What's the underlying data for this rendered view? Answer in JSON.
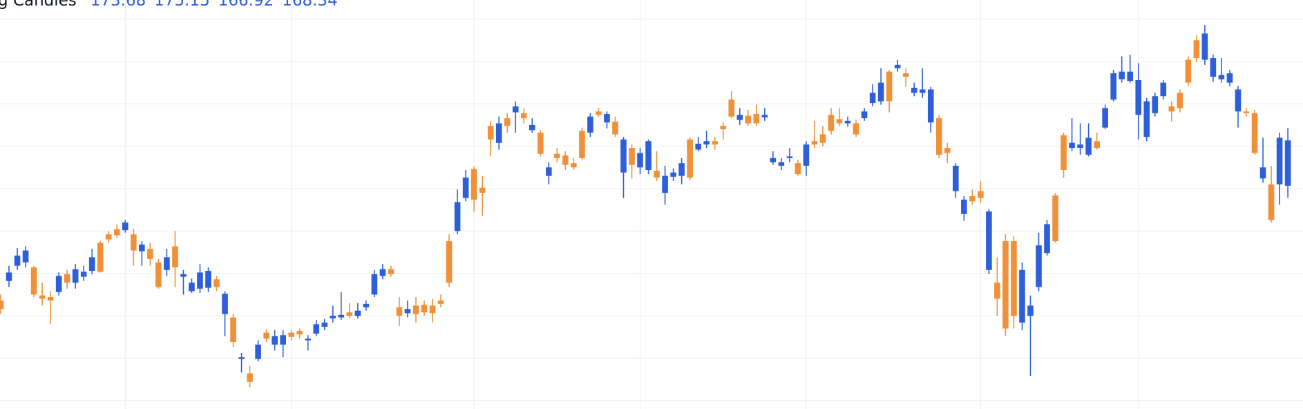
{
  "chart_data": {
    "type": "candlestick",
    "series": [
      {
        "name": "g Candles",
        "open": [
          153.8,
          158.1,
          160.1,
          160.7,
          155.5,
          155.0,
          154.8,
          157.7,
          156.9,
          158.5,
          158.2,
          159.9,
          158.2,
          162.0,
          162.5,
          164.0,
          160.7,
          161.4,
          159.7,
          156.4,
          159.9,
          158.7,
          157.9,
          156.9,
          158.1,
          158.3,
          156.4,
          155.6,
          149.9,
          148.1,
          145.2,
          149.6,
          150.3,
          150.6,
          150.7,
          150.5,
          150.8,
          150.3,
          152.0,
          152.2,
          153.0,
          153.1,
          153.0,
          153.6,
          154.4,
          157.9,
          158.5,
          157.9,
          153.0,
          153.8,
          153.2,
          153.4,
          153.3,
          154.4,
          156.9,
          166.4,
          169.3,
          166.7,
          167.5,
          173.8,
          175.7,
          175.4,
          177.7,
          176.3,
          175.5,
          172.1,
          170.5,
          171.6,
          170.8,
          170.5,
          171.6,
          176.5,
          176.7,
          176.8,
          174.4,
          173.8,
          170.8,
          172.2,
          173.6,
          169.3,
          169.5,
          169.9,
          171.0,
          169.3,
          173.3,
          173.6,
          173.2,
          175.0,
          176.5,
          176.7,
          175.7,
          175.7,
          176.7,
          171.6,
          171.1,
          171.8,
          169.7,
          173.2,
          173.2,
          173.4,
          174.8,
          175.7,
          176.0,
          174.4,
          177.1,
          179.3,
          180.5,
          178.3,
          182.6,
          181.2,
          179.9,
          179.7,
          179.7,
          172.0,
          172.2,
          170.7,
          166.7,
          166.5,
          166.9,
          165.3,
          155.0,
          151.5,
          153.0,
          158.4,
          154.2,
          161.3,
          163.8,
          161.8,
          170.2,
          173.4,
          173.2,
          174.0,
          172.8,
          177.5,
          181.6,
          181.8,
          181.8,
          180.8,
          178.3,
          178.9,
          180.5,
          177.1,
          177.5,
          180.5,
          183.4,
          186.3,
          183.4,
          181.4,
          181.6,
          179.7,
          176.9,
          172.2,
          170.5,
          164.3,
          174.0,
          173.68
        ],
        "high": [
          155.5,
          158.9,
          161.0,
          161.2,
          158.9,
          156.9,
          155.9,
          158.1,
          158.4,
          159.1,
          158.9,
          160.9,
          161.8,
          163.0,
          163.8,
          164.3,
          163.3,
          161.8,
          161.6,
          159.7,
          160.9,
          163.0,
          158.4,
          157.4,
          159.1,
          158.7,
          157.7,
          155.9,
          153.2,
          148.6,
          147.1,
          150.1,
          151.4,
          151.3,
          151.3,
          151.3,
          151.5,
          150.7,
          152.5,
          152.6,
          154.2,
          155.8,
          154.5,
          154.5,
          154.8,
          158.4,
          159.1,
          158.9,
          155.2,
          154.8,
          155.2,
          154.8,
          155.0,
          155.5,
          162.6,
          167.9,
          170.2,
          170.6,
          169.5,
          176.0,
          176.5,
          176.9,
          178.3,
          177.5,
          176.3,
          174.9,
          171.1,
          172.8,
          172.4,
          171.6,
          175.2,
          176.9,
          177.5,
          177.1,
          176.5,
          174.1,
          173.2,
          172.8,
          173.8,
          172.4,
          170.7,
          170.4,
          171.6,
          174.1,
          174.1,
          174.8,
          174.1,
          175.8,
          179.5,
          177.5,
          177.3,
          177.9,
          177.5,
          172.4,
          171.6,
          172.8,
          171.4,
          173.6,
          176.0,
          175.4,
          177.5,
          177.5,
          176.5,
          176.1,
          177.5,
          180.3,
          182.2,
          182.0,
          183.2,
          182.2,
          180.5,
          182.2,
          180.0,
          176.7,
          173.4,
          171.0,
          167.1,
          167.9,
          168.9,
          165.6,
          159.9,
          162.6,
          162.4,
          159.3,
          155.4,
          162.8,
          164.3,
          167.5,
          174.6,
          176.3,
          175.7,
          175.7,
          174.6,
          177.9,
          182.0,
          183.6,
          183.8,
          182.8,
          178.7,
          179.3,
          180.8,
          178.3,
          179.7,
          183.6,
          186.1,
          187.3,
          183.8,
          183.4,
          182.0,
          180.1,
          177.5,
          177.3,
          174.0,
          170.7,
          174.6,
          175.15
        ],
        "low": [
          153.2,
          156.4,
          158.4,
          158.7,
          155.2,
          154.2,
          152.0,
          155.4,
          156.2,
          156.2,
          157.1,
          157.9,
          158.1,
          161.6,
          162.2,
          162.8,
          158.9,
          158.9,
          158.9,
          156.2,
          157.7,
          156.4,
          155.5,
          155.7,
          155.7,
          155.8,
          155.9,
          150.6,
          149.3,
          146.3,
          144.6,
          147.6,
          149.9,
          148.9,
          148.1,
          150.1,
          150.3,
          148.9,
          150.6,
          151.3,
          152.2,
          152.5,
          152.7,
          152.7,
          153.6,
          155.2,
          157.3,
          157.6,
          151.8,
          152.8,
          152.2,
          153.0,
          152.2,
          154.0,
          156.4,
          162.6,
          166.5,
          165.3,
          164.8,
          171.8,
          172.6,
          174.6,
          174.6,
          175.7,
          174.6,
          171.8,
          168.5,
          171.1,
          170.2,
          170.2,
          171.4,
          174.1,
          176.5,
          175.1,
          174.1,
          166.9,
          169.2,
          169.7,
          169.7,
          168.9,
          166.1,
          168.9,
          168.5,
          169.0,
          172.4,
          172.8,
          172.6,
          173.8,
          176.3,
          175.5,
          175.4,
          175.4,
          176.0,
          170.8,
          170.2,
          171.1,
          169.5,
          169.5,
          172.8,
          173.0,
          174.4,
          175.4,
          175.3,
          174.1,
          176.0,
          177.7,
          177.9,
          177.0,
          181.8,
          180.0,
          178.9,
          178.7,
          174.6,
          171.6,
          171.0,
          166.9,
          164.2,
          166.1,
          166.3,
          157.9,
          153.0,
          150.6,
          151.5,
          151.3,
          145.9,
          155.9,
          160.1,
          161.6,
          169.3,
          172.4,
          172.0,
          171.8,
          172.6,
          175.0,
          178.3,
          180.5,
          180.5,
          173.8,
          173.6,
          176.5,
          178.5,
          175.9,
          177.0,
          180.1,
          182.9,
          182.6,
          180.6,
          180.5,
          180.1,
          175.2,
          176.5,
          172.0,
          168.7,
          164.0,
          166.1,
          166.92
        ],
        "close": [
          154.8,
          157.1,
          158.9,
          159.3,
          158.7,
          155.4,
          155.2,
          155.8,
          157.9,
          156.9,
          157.6,
          158.3,
          161.6,
          162.6,
          163.2,
          163.1,
          162.6,
          160.6,
          160.9,
          159.3,
          158.4,
          161.2,
          157.6,
          155.9,
          156.2,
          156.3,
          157.3,
          153.2,
          152.8,
          147.9,
          146.2,
          147.9,
          151.0,
          149.6,
          149.6,
          151.0,
          151.2,
          150.1,
          150.9,
          151.7,
          152.7,
          152.8,
          153.4,
          153.0,
          154.0,
          155.5,
          157.7,
          158.5,
          154.0,
          153.3,
          154.2,
          154.3,
          154.2,
          154.8,
          161.8,
          163.0,
          166.9,
          170.3,
          168.1,
          175.4,
          173.4,
          176.3,
          177.0,
          176.9,
          174.9,
          174.6,
          169.5,
          172.1,
          171.9,
          171.0,
          174.8,
          174.6,
          177.1,
          175.8,
          175.9,
          169.9,
          172.8,
          170.5,
          170.2,
          170.1,
          167.5,
          169.4,
          169.5,
          173.8,
          172.6,
          173.2,
          173.6,
          175.4,
          178.5,
          176.1,
          176.6,
          176.8,
          176.4,
          171.1,
          170.7,
          171.6,
          171.0,
          170.7,
          173.6,
          174.4,
          176.7,
          176.2,
          175.7,
          175.7,
          176.3,
          178.1,
          178.3,
          181.8,
          182.2,
          181.6,
          179.3,
          179.3,
          175.8,
          176.3,
          172.8,
          167.7,
          165.0,
          167.1,
          167.7,
          158.4,
          156.9,
          161.8,
          161.8,
          152.2,
          153.0,
          156.4,
          160.4,
          167.2,
          174.3,
          172.8,
          172.8,
          172.0,
          173.6,
          175.2,
          178.5,
          180.9,
          180.7,
          176.7,
          174.1,
          176.9,
          178.9,
          177.7,
          179.3,
          183.2,
          185.5,
          183.2,
          181.2,
          180.9,
          180.5,
          177.1,
          177.1,
          176.9,
          169.2,
          168.5,
          168.5,
          168.34
        ]
      }
    ],
    "up_color": "#f0913a",
    "down_color": "#2d5fd8",
    "ylim": [
      142,
      190.25
    ],
    "yticks": [
      143,
      148,
      153,
      158,
      163,
      168,
      173,
      178,
      183,
      188
    ],
    "xticks": [
      15,
      35,
      57,
      77,
      97,
      118,
      137
    ],
    "grid": true
  }
}
